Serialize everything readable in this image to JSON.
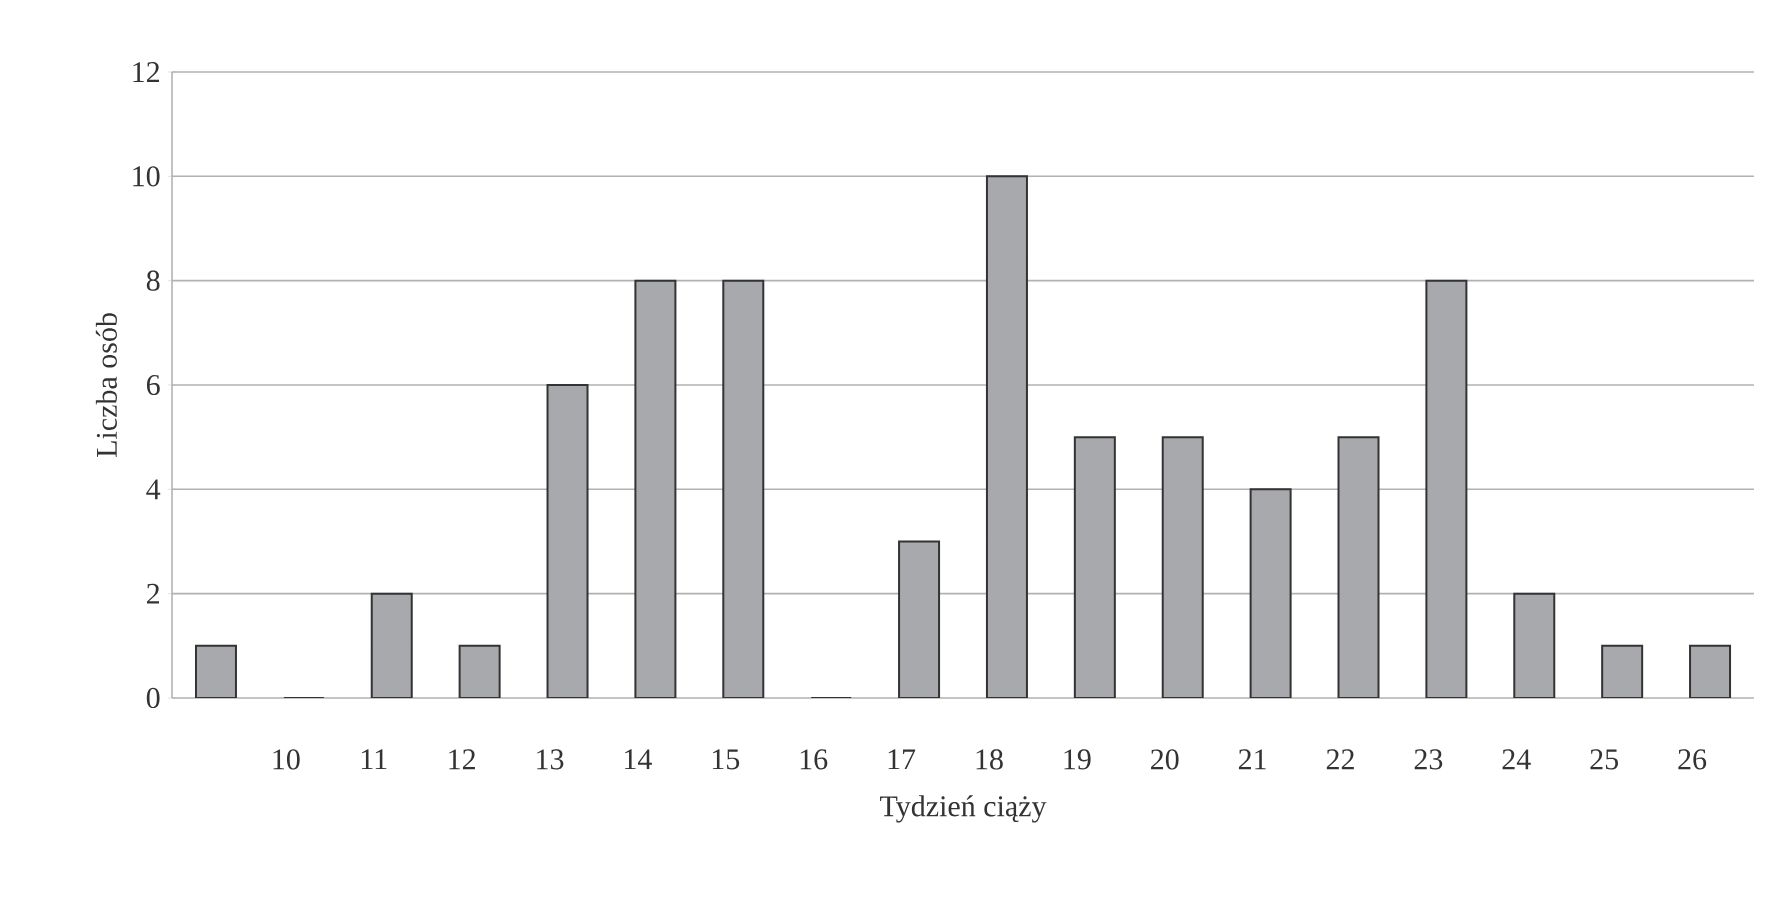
{
  "chart_data": {
    "type": "bar",
    "xlabel": "Tydzień ciąży",
    "ylabel": "Liczba osób",
    "categories": [
      null,
      "10",
      "11",
      "12",
      "13",
      "14",
      "15",
      "16",
      "17",
      "18",
      "19",
      "20",
      "21",
      "22",
      "23",
      "24",
      "25",
      "26"
    ],
    "values": [
      1,
      0,
      2,
      1,
      6,
      8,
      8,
      0,
      3,
      10,
      5,
      5,
      4,
      5,
      8,
      2,
      1,
      1
    ],
    "color": "#a7a9ac",
    "ylim": [
      0,
      12
    ],
    "yticks": [
      0,
      2,
      4,
      6,
      8,
      10,
      12
    ],
    "grid": "y"
  }
}
